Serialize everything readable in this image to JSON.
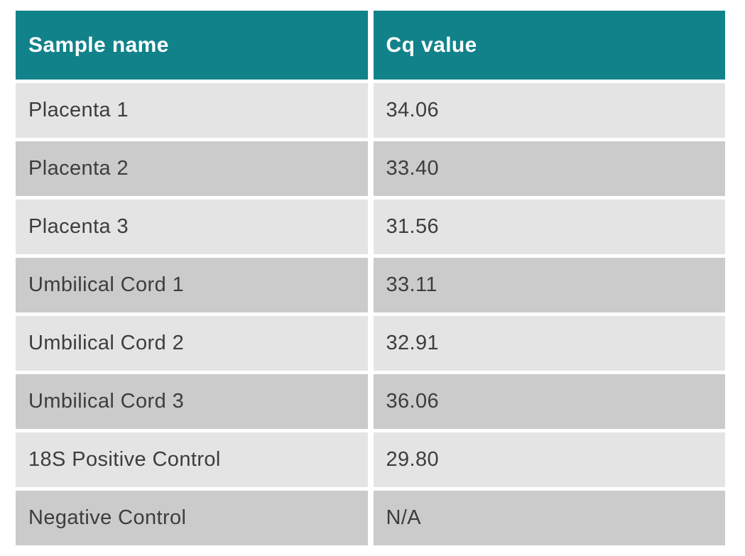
{
  "table": {
    "columns": [
      "Sample name",
      "Cq value"
    ],
    "rows": [
      {
        "sample": "Placenta 1",
        "cq": "34.06"
      },
      {
        "sample": "Placenta 2",
        "cq": "33.40"
      },
      {
        "sample": "Placenta 3",
        "cq": "31.56"
      },
      {
        "sample": "Umbilical Cord 1",
        "cq": "33.11"
      },
      {
        "sample": "Umbilical Cord 2",
        "cq": "32.91"
      },
      {
        "sample": "Umbilical Cord 3",
        "cq": "36.06"
      },
      {
        "sample": "18S Positive Control",
        "cq": "29.80"
      },
      {
        "sample": "Negative Control",
        "cq": "N/A"
      }
    ]
  },
  "colors": {
    "header_bg": "#12828a",
    "header_text": "#ffffff",
    "row_light_bg": "#e4e4e4",
    "row_dark_bg": "#cbcbcb",
    "body_text": "#3d3d3d",
    "gutter": "#ffffff"
  },
  "chart_data": {
    "type": "table",
    "title": "",
    "columns": [
      "Sample name",
      "Cq value"
    ],
    "rows": [
      [
        "Placenta 1",
        "34.06"
      ],
      [
        "Placenta 2",
        "33.40"
      ],
      [
        "Placenta 3",
        "31.56"
      ],
      [
        "Umbilical Cord 1",
        "33.11"
      ],
      [
        "Umbilical Cord 2",
        "32.91"
      ],
      [
        "Umbilical Cord 3",
        "36.06"
      ],
      [
        "18S Positive Control",
        "29.80"
      ],
      [
        "Negative Control",
        "N/A"
      ]
    ],
    "numeric_values": {
      "series_name": "Cq value",
      "categories": [
        "Placenta 1",
        "Placenta 2",
        "Placenta 3",
        "Umbilical Cord 1",
        "Umbilical Cord 2",
        "Umbilical Cord 3",
        "18S Positive Control",
        "Negative Control"
      ],
      "values": [
        34.06,
        33.4,
        31.56,
        33.11,
        32.91,
        36.06,
        29.8,
        null
      ]
    },
    "layout_hints": {
      "header_position": "top",
      "alternating_row_shading": true,
      "grid": "white gutters between cells"
    }
  }
}
